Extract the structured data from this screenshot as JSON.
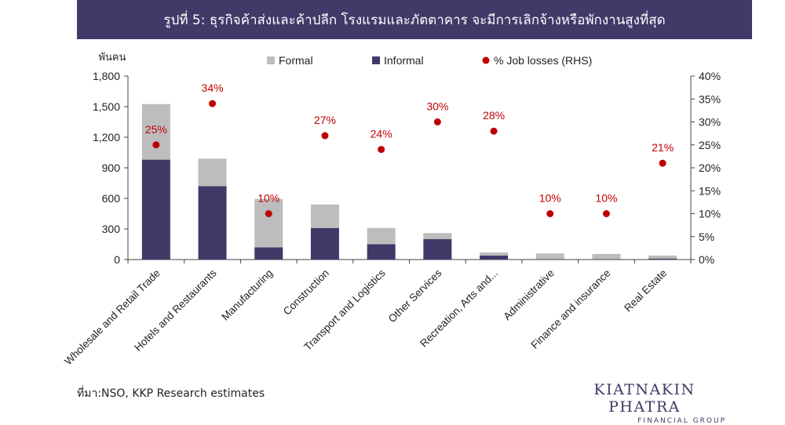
{
  "title": "รูปที่ 5: ธุรกิจค้าส่งและค้าปลีก โรงแรมและภัตตาคาร จะมีการเลิกจ้างหรือพักงานสูงที่สุด",
  "source": "ที่มา:NSO, KKP Research estimates",
  "brand": {
    "name": "KIATNAKIN PHATRA",
    "subtitle": "FINANCIAL GROUP"
  },
  "colors": {
    "formal": "#bdbdbd",
    "informal": "#3f3a67",
    "job_losses": "#c00000",
    "header": "#3f3a67"
  },
  "chart_data": {
    "type": "bar",
    "stacked": true,
    "ylabel_left": "พันคน",
    "ylim_left": [
      0,
      1800
    ],
    "ylim_right": [
      0,
      40
    ],
    "y_ticks_left": [
      "0",
      "300",
      "600",
      "900",
      "1,200",
      "1,500",
      "1,800"
    ],
    "y_ticks_right": [
      "0%",
      "5%",
      "10%",
      "15%",
      "20%",
      "25%",
      "30%",
      "35%",
      "40%"
    ],
    "legend": [
      "Formal",
      "Informal",
      "% Job losses (RHS)"
    ],
    "legend_position": "top",
    "grid": false,
    "categories": [
      "Wholesale and Retail Trade",
      "Hotels and Restaurants",
      "Manufacturing",
      "Construction",
      "Transport and Logistics",
      "Other Services",
      "Recreation, Arts and...",
      "Administrative",
      "Finance and insurance",
      "Real Estate"
    ],
    "series": [
      {
        "name": "Informal",
        "type": "bar",
        "axis": "left",
        "values": [
          980,
          720,
          120,
          310,
          150,
          200,
          40,
          5,
          5,
          10
        ]
      },
      {
        "name": "Formal",
        "type": "bar",
        "axis": "left",
        "values": [
          545,
          270,
          475,
          230,
          160,
          60,
          30,
          55,
          50,
          30
        ]
      },
      {
        "name": "% Job losses (RHS)",
        "type": "scatter",
        "axis": "right",
        "values": [
          25,
          34,
          10,
          27,
          24,
          30,
          28,
          10,
          10,
          21
        ],
        "labels": [
          "25%",
          "34%",
          "10%",
          "27%",
          "24%",
          "30%",
          "28%",
          "10%",
          "10%",
          "21%"
        ]
      }
    ]
  }
}
